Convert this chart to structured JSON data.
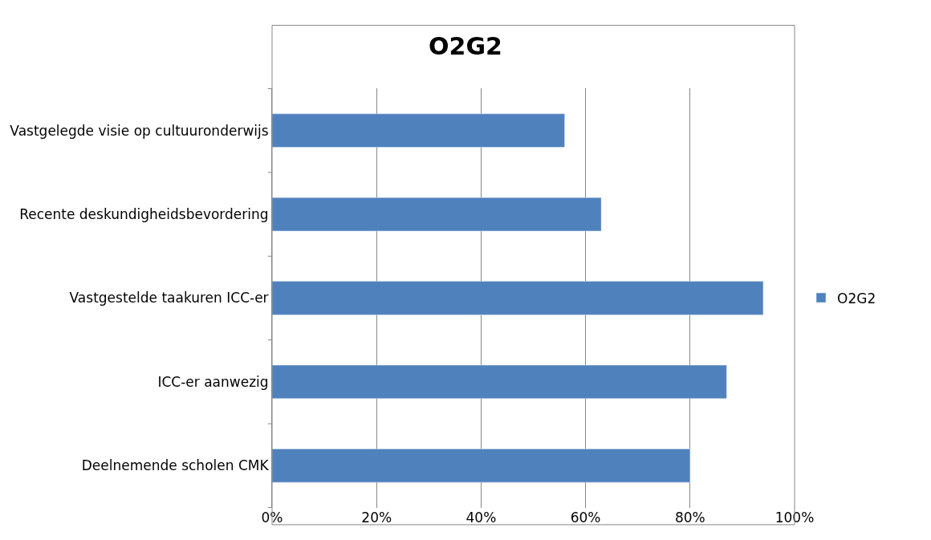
{
  "chart_data": {
    "type": "bar",
    "orientation": "horizontal",
    "title": "O2G2",
    "categories": [
      "Vastgelegde visie op cultuuronderwijs",
      "Recente deskundigheidsbevordering",
      "Vastgestelde taakuren ICC-er",
      "ICC-er aanwezig",
      "Deelnemende scholen CMK"
    ],
    "series": [
      {
        "name": "O2G2",
        "color": "#4f81bd",
        "values": [
          56,
          63,
          94,
          87,
          80
        ]
      }
    ],
    "xlim": [
      0,
      100
    ],
    "xticks": [
      {
        "value": 0,
        "label": "0%"
      },
      {
        "value": 20,
        "label": "20%"
      },
      {
        "value": 40,
        "label": "40%"
      },
      {
        "value": 60,
        "label": "60%"
      },
      {
        "value": 80,
        "label": "80%"
      },
      {
        "value": 100,
        "label": "100%"
      }
    ],
    "grid": "x",
    "legend": "right"
  }
}
